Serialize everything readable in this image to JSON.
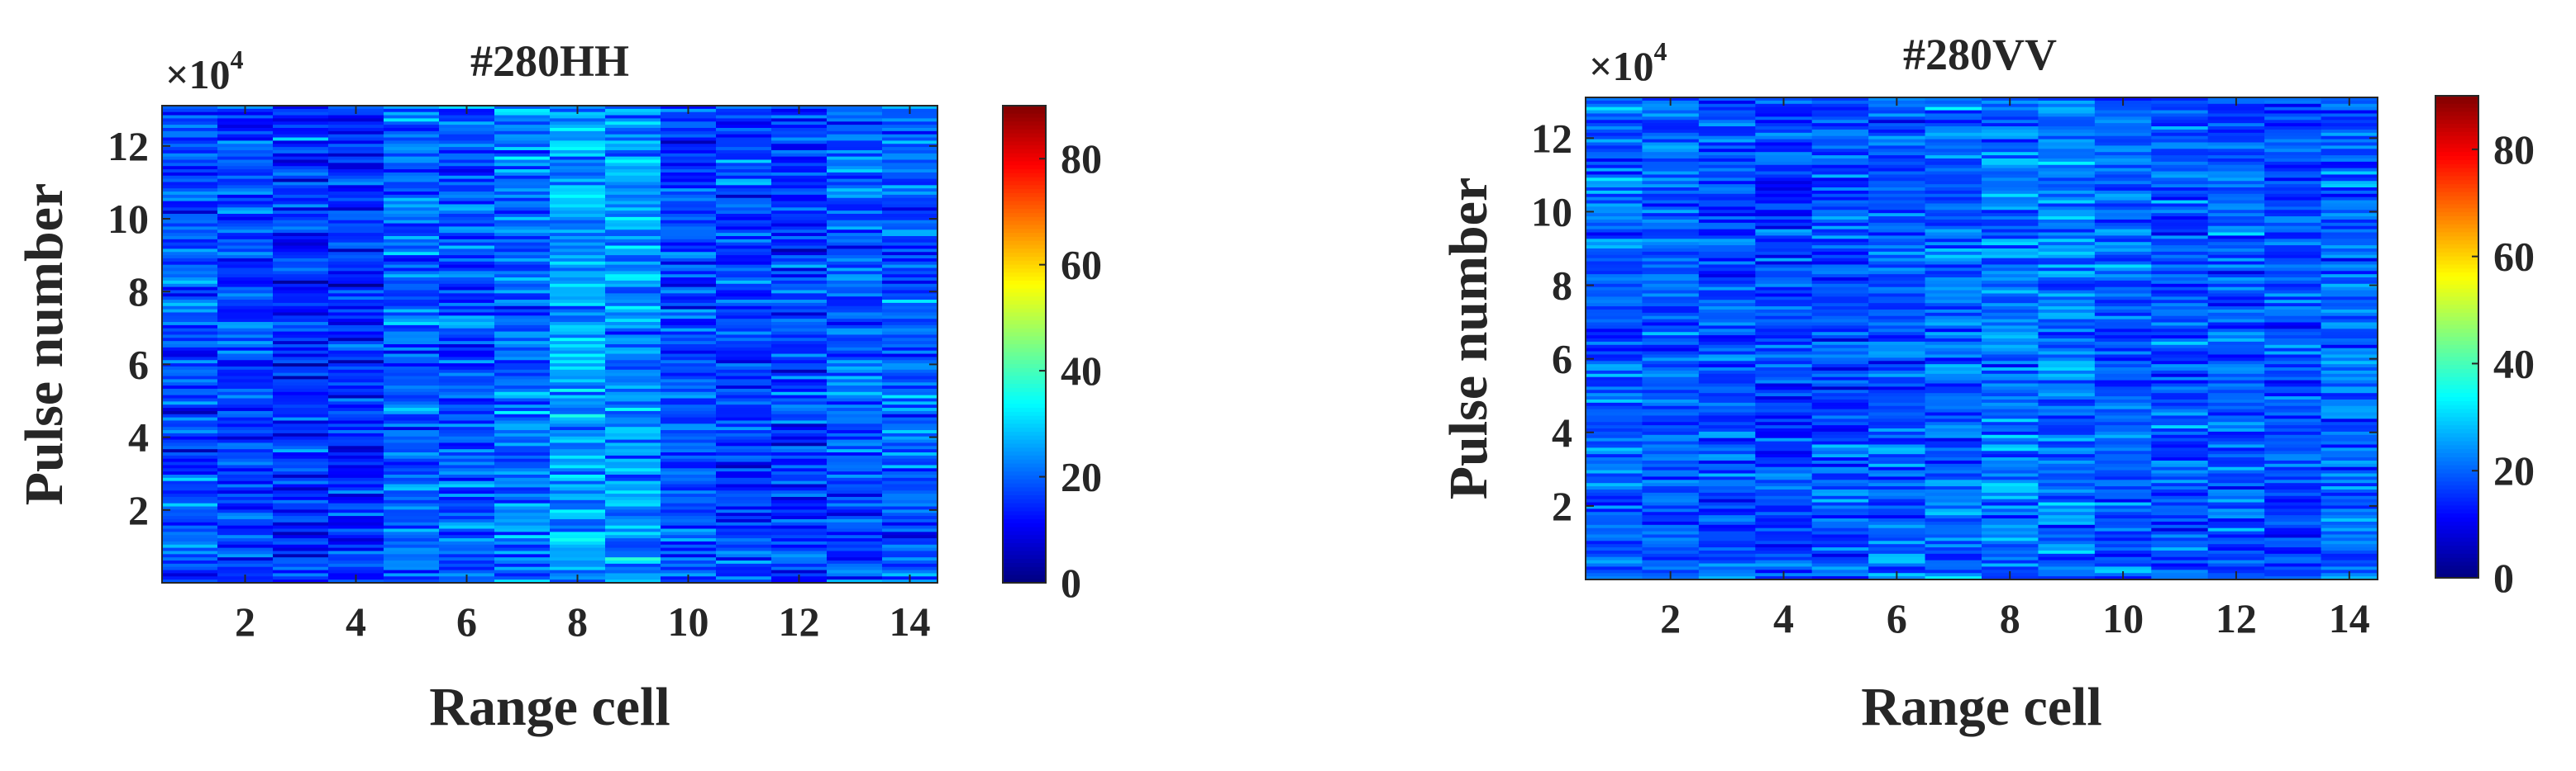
{
  "chart_data": [
    {
      "type": "heatmap",
      "title": "#280HH",
      "xlabel": "Range cell",
      "ylabel": "Pulse number",
      "y_exponent_label": "×10",
      "y_exponent_power": "4",
      "xlim": [
        1,
        14
      ],
      "ylim": [
        0,
        131072
      ],
      "x_ticks": [
        2,
        4,
        6,
        8,
        10,
        12,
        14
      ],
      "x_tick_labels": [
        "2",
        "4",
        "6",
        "8",
        "10",
        "12",
        "14"
      ],
      "y_ticks": [
        2,
        4,
        6,
        8,
        10,
        12
      ],
      "y_tick_labels": [
        "2",
        "4",
        "6",
        "8",
        "10",
        "12"
      ],
      "range_cells": [
        1,
        2,
        3,
        4,
        5,
        6,
        7,
        8,
        9,
        10,
        11,
        12,
        13,
        14
      ],
      "column_mean_amplitude": [
        18,
        17,
        16,
        15,
        20,
        19,
        21,
        25,
        24,
        18,
        17,
        17,
        19,
        20
      ],
      "amplitude_spread": 10,
      "colorbar": {
        "colormap": "jet",
        "clim": [
          0,
          90
        ],
        "ticks": [
          0,
          20,
          40,
          60,
          80
        ],
        "tick_labels": [
          "0",
          "20",
          "40",
          "60",
          "80"
        ]
      },
      "grid": false,
      "legend": "none"
    },
    {
      "type": "heatmap",
      "title": "#280VV",
      "xlabel": "Range cell",
      "ylabel": "Pulse number",
      "y_exponent_label": "×10",
      "y_exponent_power": "4",
      "xlim": [
        1,
        14
      ],
      "ylim": [
        0,
        131072
      ],
      "x_ticks": [
        2,
        4,
        6,
        8,
        10,
        12,
        14
      ],
      "x_tick_labels": [
        "2",
        "4",
        "6",
        "8",
        "10",
        "12",
        "14"
      ],
      "y_ticks": [
        2,
        4,
        6,
        8,
        10,
        12
      ],
      "y_tick_labels": [
        "2",
        "4",
        "6",
        "8",
        "10",
        "12"
      ],
      "range_cells": [
        1,
        2,
        3,
        4,
        5,
        6,
        7,
        8,
        9,
        10,
        11,
        12,
        13,
        14
      ],
      "column_mean_amplitude": [
        20,
        19,
        18,
        17,
        18,
        19,
        21,
        22,
        21,
        19,
        18,
        19,
        18,
        20
      ],
      "amplitude_spread": 9,
      "colorbar": {
        "colormap": "jet",
        "clim": [
          0,
          90
        ],
        "ticks": [
          0,
          20,
          40,
          60,
          80
        ],
        "tick_labels": [
          "0",
          "20",
          "40",
          "60",
          "80"
        ]
      },
      "grid": false,
      "legend": "none"
    }
  ]
}
